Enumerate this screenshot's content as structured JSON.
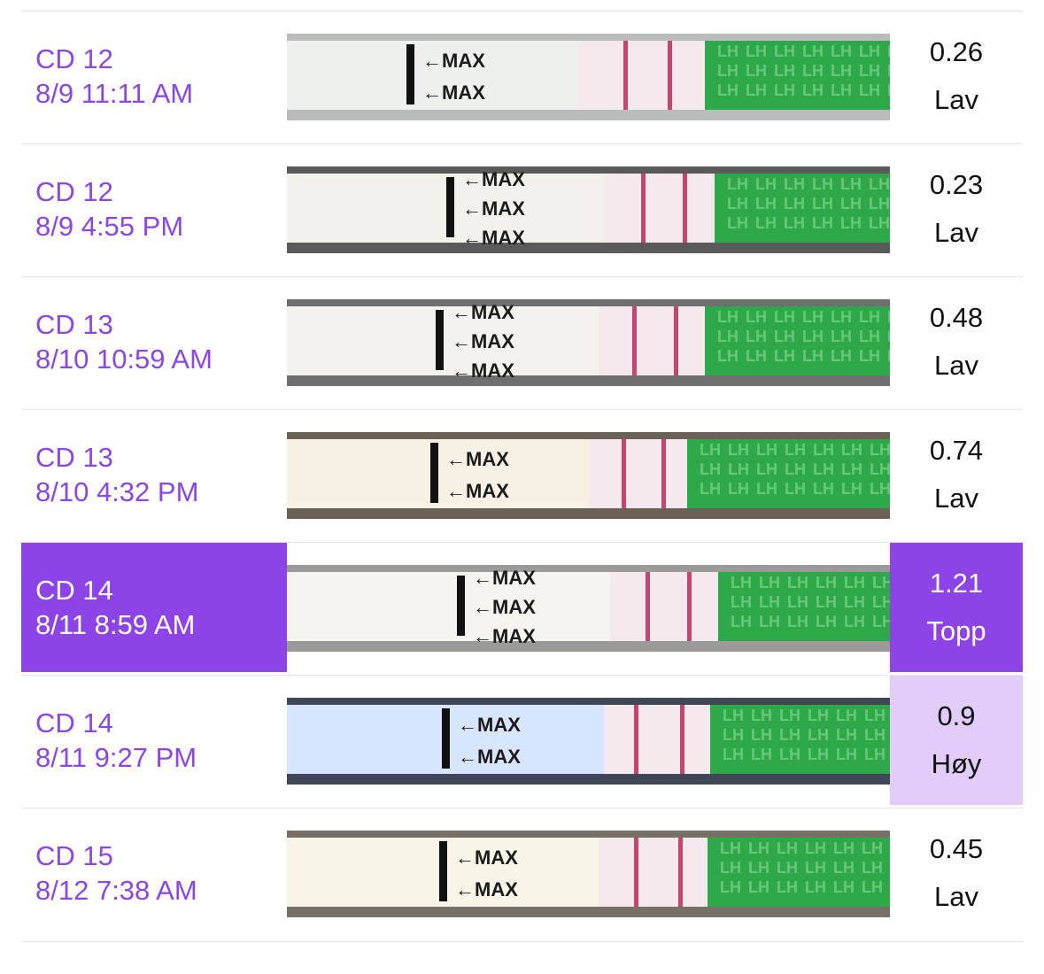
{
  "rows": [
    {
      "cycle_day": "CD 12",
      "datetime": "8/9 11:11 AM",
      "value": "0.26",
      "level": "Lav",
      "highlight": "none",
      "strip_bg": "#eef0ee",
      "strip_edge": "#b9bcbb",
      "marks": [
        "MAX",
        "MAX"
      ],
      "line_color": "#c4466e"
    },
    {
      "cycle_day": "CD 12",
      "datetime": "8/9 4:55 PM",
      "value": "0.23",
      "level": "Lav",
      "highlight": "none",
      "strip_bg": "#f2f1ec",
      "strip_edge": "#5a5a5a",
      "marks": [
        "MAX",
        "MAX",
        "MAX"
      ],
      "line_color": "#c4466e"
    },
    {
      "cycle_day": "CD 13",
      "datetime": "8/10 10:59 AM",
      "value": "0.48",
      "level": "Lav",
      "highlight": "none",
      "strip_bg": "#f3f2ee",
      "strip_edge": "#6f6f6f",
      "marks": [
        "MAX",
        "MAX",
        "MAX"
      ],
      "line_color": "#c4466e"
    },
    {
      "cycle_day": "CD 13",
      "datetime": "8/10 4:32 PM",
      "value": "0.74",
      "level": "Lav",
      "highlight": "none",
      "strip_bg": "#f7f1e4",
      "strip_edge": "#6a6157",
      "marks": [
        "MAX",
        "MAX"
      ],
      "line_color": "#c4466e"
    },
    {
      "cycle_day": "CD 14",
      "datetime": "8/11 8:59 AM",
      "value": "1.21",
      "level": "Topp",
      "highlight": "strong",
      "strip_bg": "#f5f4ef",
      "strip_edge": "#9a9a98",
      "marks": [
        "MAX",
        "MAX",
        "MAX"
      ],
      "line_color": "#c4466e"
    },
    {
      "cycle_day": "CD 14",
      "datetime": "8/11 9:27 PM",
      "value": "0.9",
      "level": "Høy",
      "highlight": "soft",
      "strip_bg": "#d8e5ff",
      "strip_edge": "#3f4656",
      "marks": [
        "MAX",
        "MAX"
      ],
      "line_color": "#c4466e"
    },
    {
      "cycle_day": "CD 15",
      "datetime": "8/12 7:38 AM",
      "value": "0.45",
      "level": "Lav",
      "highlight": "none",
      "strip_bg": "#f8f4e8",
      "strip_edge": "#777066",
      "marks": [
        "MAX",
        "MAX"
      ],
      "line_color": "#c4466e"
    }
  ],
  "strip_text": "LH",
  "colors": {
    "accent": "#8e43e7",
    "accent_soft": "#e2cdfa",
    "label_purple": "#8b46e6",
    "lh_green": "#2fa84a"
  }
}
